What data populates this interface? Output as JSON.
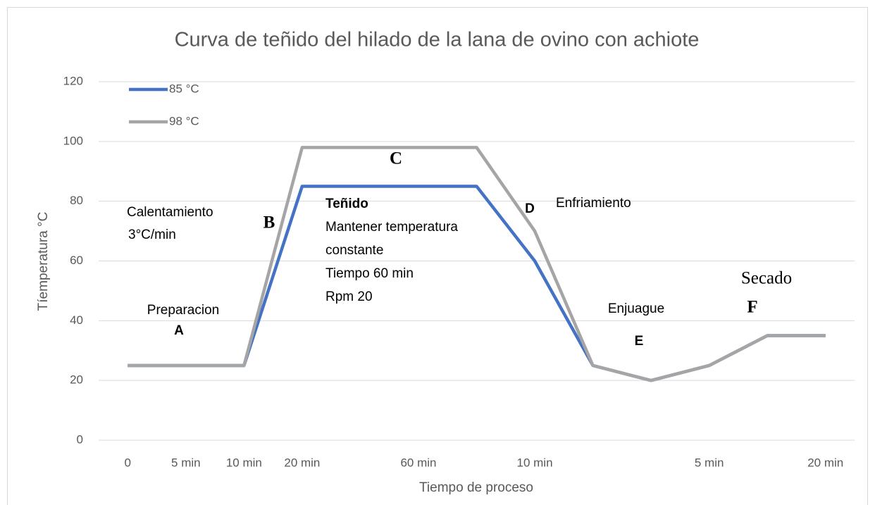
{
  "chart_data": {
    "type": "line",
    "title": "Curva de teñido del hilado de la lana de ovino con achiote",
    "x_label": "Tiempo de proceso",
    "y_label": "Tíemperatura °C",
    "categories": [
      "0",
      "5 min",
      "10 min",
      "20 min",
      null,
      "60 min",
      null,
      "10 min",
      null,
      null,
      "5 min",
      null,
      "20 min"
    ],
    "series": [
      {
        "name": "85 °C",
        "color": "#4472c4",
        "values": [
          25,
          25,
          25,
          85,
          85,
          85,
          85,
          60,
          25,
          20,
          25,
          35,
          35
        ]
      },
      {
        "name": "98 °C",
        "color": "#a5a5a5",
        "values": [
          25,
          25,
          25,
          98,
          98,
          98,
          98,
          70,
          25,
          20,
          25,
          35,
          35
        ]
      }
    ],
    "ylim": [
      0,
      120
    ],
    "yticks": [
      0,
      20,
      40,
      60,
      80,
      100,
      120
    ],
    "grid": true,
    "legend": "top-left",
    "annotations": [
      "Preparacion",
      "A",
      "Calentamiento",
      "3°C/min",
      "B",
      "C",
      "Teñido",
      "Mantener temperatura",
      "constante",
      "Tiempo 60 min",
      "Rpm 20",
      "D",
      "Enfriamiento",
      "Enjuague",
      "E",
      "Secado",
      "F"
    ]
  }
}
